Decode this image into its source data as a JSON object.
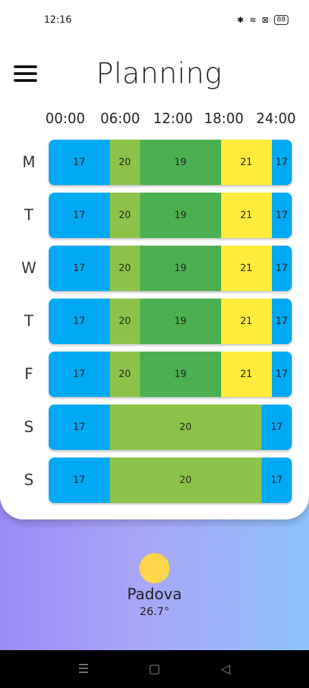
{
  "status": {
    "time": "12:16",
    "battery": "88"
  },
  "header": {
    "title": "Planning"
  },
  "time_axis": [
    "00:00",
    "06:00",
    "12:00",
    "18:00",
    "24:00"
  ],
  "colors": {
    "17": "#00a9f4",
    "19": "#4caf50",
    "20": "#8bc34a",
    "21": "#ffeb3b"
  },
  "schedule": [
    {
      "day": "M",
      "segments": [
        {
          "start": 0,
          "end": 6,
          "value": "17"
        },
        {
          "start": 6,
          "end": 9,
          "value": "20"
        },
        {
          "start": 9,
          "end": 17,
          "value": "19"
        },
        {
          "start": 17,
          "end": 22,
          "value": "21"
        },
        {
          "start": 22,
          "end": 24,
          "value": "17"
        }
      ]
    },
    {
      "day": "T",
      "segments": [
        {
          "start": 0,
          "end": 6,
          "value": "17"
        },
        {
          "start": 6,
          "end": 9,
          "value": "20"
        },
        {
          "start": 9,
          "end": 17,
          "value": "19"
        },
        {
          "start": 17,
          "end": 22,
          "value": "21"
        },
        {
          "start": 22,
          "end": 24,
          "value": "17"
        }
      ]
    },
    {
      "day": "W",
      "segments": [
        {
          "start": 0,
          "end": 6,
          "value": "17"
        },
        {
          "start": 6,
          "end": 9,
          "value": "20"
        },
        {
          "start": 9,
          "end": 17,
          "value": "19"
        },
        {
          "start": 17,
          "end": 22,
          "value": "21"
        },
        {
          "start": 22,
          "end": 24,
          "value": "17"
        }
      ]
    },
    {
      "day": "T",
      "segments": [
        {
          "start": 0,
          "end": 6,
          "value": "17"
        },
        {
          "start": 6,
          "end": 9,
          "value": "20"
        },
        {
          "start": 9,
          "end": 17,
          "value": "19"
        },
        {
          "start": 17,
          "end": 22,
          "value": "21"
        },
        {
          "start": 22,
          "end": 24,
          "value": "17"
        }
      ]
    },
    {
      "day": "F",
      "segments": [
        {
          "start": 0,
          "end": 6,
          "value": "17"
        },
        {
          "start": 6,
          "end": 9,
          "value": "20"
        },
        {
          "start": 9,
          "end": 17,
          "value": "19"
        },
        {
          "start": 17,
          "end": 22,
          "value": "21"
        },
        {
          "start": 22,
          "end": 24,
          "value": "17"
        }
      ]
    },
    {
      "day": "S",
      "segments": [
        {
          "start": 0,
          "end": 6,
          "value": "17"
        },
        {
          "start": 6,
          "end": 21,
          "value": "20"
        },
        {
          "start": 21,
          "end": 24,
          "value": "17"
        }
      ]
    },
    {
      "day": "S",
      "segments": [
        {
          "start": 0,
          "end": 6,
          "value": "17"
        },
        {
          "start": 6,
          "end": 21,
          "value": "20"
        },
        {
          "start": 21,
          "end": 24,
          "value": "17"
        }
      ]
    }
  ],
  "weather": {
    "icon": "sun-icon",
    "city": "Padova",
    "temperature": "26.7°"
  },
  "nav": {
    "menu_icon": "☰",
    "home_icon": "▢",
    "back_icon": "◁"
  }
}
